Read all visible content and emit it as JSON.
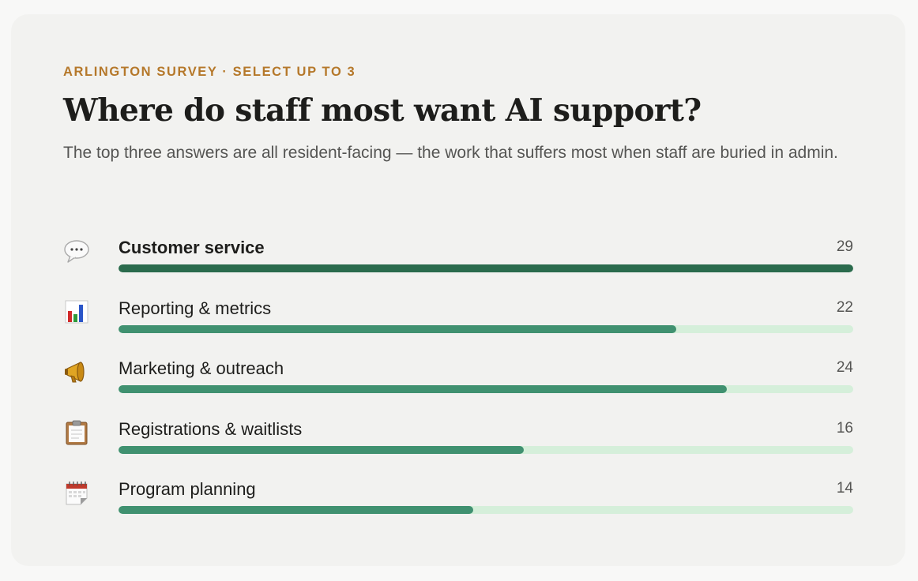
{
  "eyebrow": "ARLINGTON SURVEY · SELECT UP TO 3",
  "title": "Where do staff most want AI support?",
  "subtitle": "The top three answers are all resident-facing — the work that suffers most when staff are buried in admin.",
  "colors": {
    "accent": "#b5782a",
    "bar_top": "#2b6b4d",
    "bar": "#409170",
    "track": "#d5efda"
  },
  "chart_data": {
    "type": "bar",
    "orientation": "horizontal",
    "title": "Where do staff most want AI support?",
    "categories": [
      "Customer service",
      "Reporting & metrics",
      "Marketing & outreach",
      "Registrations & waitlists",
      "Program planning"
    ],
    "values": [
      29,
      22,
      24,
      16,
      14
    ],
    "icons": [
      "speech-bubble-icon",
      "bar-chart-icon",
      "megaphone-icon",
      "clipboard-icon",
      "calendar-icon"
    ],
    "xlim": [
      0,
      29
    ],
    "highlight": "Customer service"
  }
}
